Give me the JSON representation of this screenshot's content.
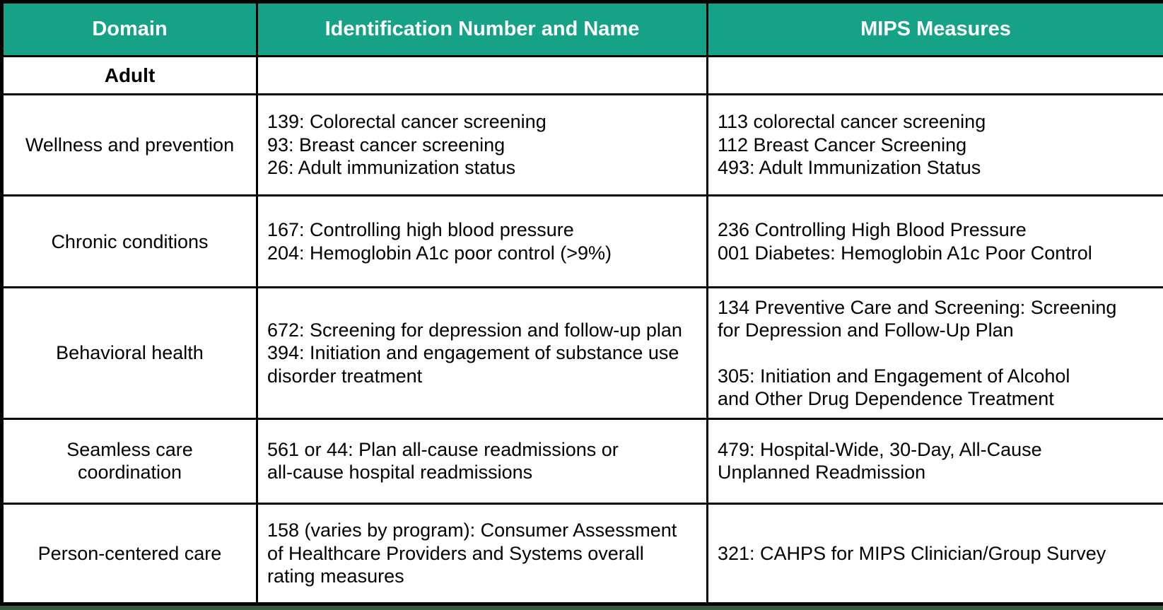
{
  "table": {
    "colors": {
      "header_bg": "#16a287",
      "header_text": "#ffffff",
      "border": "#000000",
      "bottom_strip": "#355c40"
    },
    "columns": [
      "Domain",
      "Identification Number and Name",
      "MIPS Measures"
    ],
    "section_row": {
      "label": "Adult"
    },
    "rows": [
      {
        "domain": [
          "Wellness and prevention"
        ],
        "identification": [
          "139: Colorectal cancer screening",
          "93: Breast cancer screening",
          "26: Adult immunization status"
        ],
        "mips": [
          "113 colorectal cancer screening",
          "112 Breast Cancer Screening",
          "493: Adult Immunization Status"
        ]
      },
      {
        "domain": [
          "Chronic conditions"
        ],
        "identification": [
          "167: Controlling high blood pressure",
          "204: Hemoglobin A1c poor control (>9%)"
        ],
        "mips": [
          "236 Controlling High Blood Pressure",
          "001 Diabetes: Hemoglobin A1c Poor Control"
        ]
      },
      {
        "domain": [
          "Behavioral health"
        ],
        "identification": [
          "672: Screening for depression and follow-up plan",
          "394: Initiation and engagement of substance use",
          "disorder treatment"
        ],
        "mips": [
          "134 Preventive Care and Screening: Screening",
          "for Depression and Follow-Up Plan",
          "",
          "305: Initiation and Engagement of Alcohol",
          "and Other Drug Dependence Treatment"
        ]
      },
      {
        "domain": [
          "Seamless care",
          "coordination"
        ],
        "identification": [
          "561 or 44: Plan all-cause readmissions or",
          "all-cause hospital readmissions"
        ],
        "mips": [
          "479: Hospital-Wide, 30-Day, All-Cause",
          "Unplanned Readmission"
        ]
      },
      {
        "domain": [
          "Person-centered care"
        ],
        "identification": [
          "158 (varies by program): Consumer Assessment",
          "of Healthcare Providers and Systems overall",
          "rating measures"
        ],
        "mips": [
          "321: CAHPS for MIPS Clinician/Group Survey"
        ]
      }
    ]
  }
}
